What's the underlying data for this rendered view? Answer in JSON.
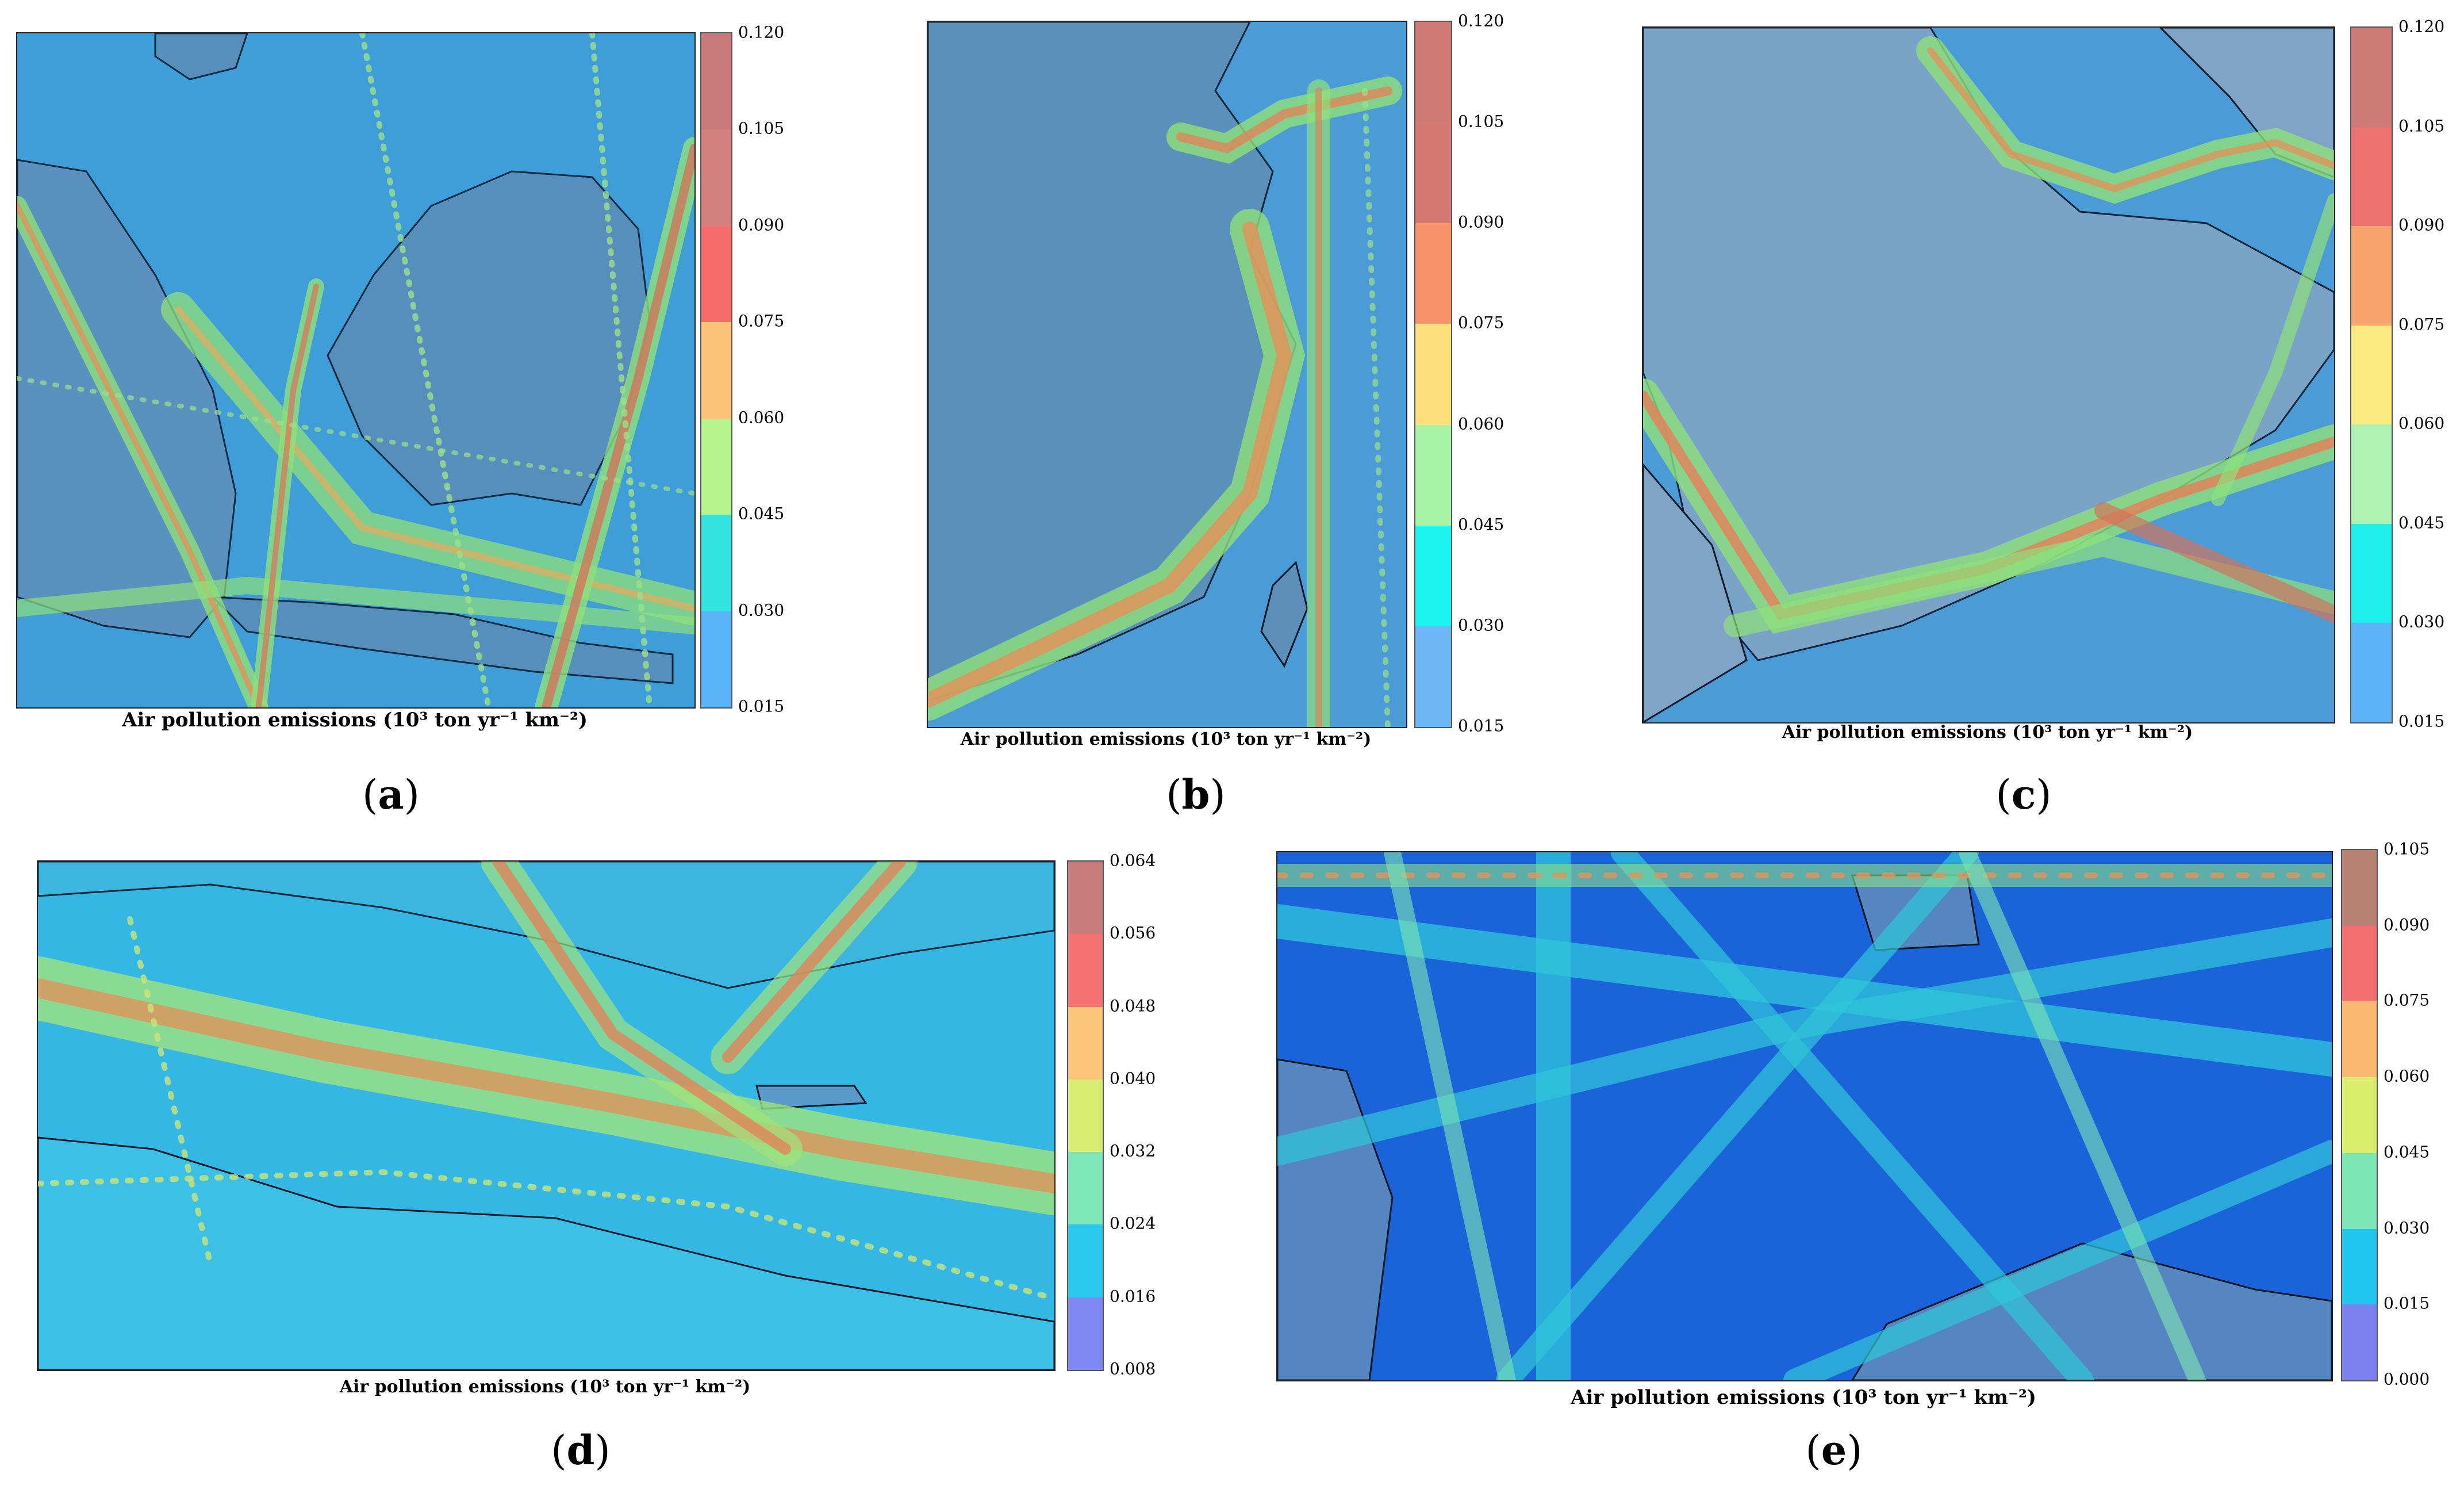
{
  "axis_label": "Air pollution emissions (10³ ton yr⁻¹ km⁻²)",
  "panels": [
    {
      "label": "a",
      "colorbar_ticks": [
        "0.015",
        "0.030",
        "0.045",
        "0.060",
        "0.075",
        "0.090",
        "0.105",
        "0.120"
      ],
      "colorbar_colors": [
        "#5ab4f8",
        "#33e3df",
        "#b6f58e",
        "#fcc37a",
        "#f76b6b",
        "#d38080",
        "#c97b7b"
      ]
    },
    {
      "label": "b",
      "colorbar_ticks": [
        "0.015",
        "0.030",
        "0.045",
        "0.060",
        "0.075",
        "0.090",
        "0.105",
        "0.120"
      ],
      "colorbar_colors": [
        "#6db7f6",
        "#1cf2ee",
        "#a8f4a6",
        "#fbe07c",
        "#f8926a",
        "#d57a72",
        "#cf7a74"
      ]
    },
    {
      "label": "c",
      "colorbar_ticks": [
        "0.015",
        "0.030",
        "0.045",
        "0.060",
        "0.075",
        "0.090",
        "0.105",
        "0.120"
      ],
      "colorbar_colors": [
        "#5eb3f6",
        "#1ff0ec",
        "#aff3b4",
        "#fbea7d",
        "#f9a36d",
        "#ec7370",
        "#cf7b78"
      ]
    },
    {
      "label": "d",
      "colorbar_ticks": [
        "0.008",
        "0.016",
        "0.024",
        "0.032",
        "0.040",
        "0.048",
        "0.056",
        "0.064"
      ],
      "colorbar_colors": [
        "#7d88f3",
        "#2bc8ee",
        "#7fe6b9",
        "#d9ed73",
        "#fbc67a",
        "#f57272",
        "#c97e7e"
      ]
    },
    {
      "label": "e",
      "colorbar_ticks": [
        "0.000",
        "0.015",
        "0.030",
        "0.045",
        "0.060",
        "0.075",
        "0.090",
        "0.105"
      ],
      "colorbar_colors": [
        "#7d80f1",
        "#1fc6ee",
        "#7ee6b2",
        "#d8ee6c",
        "#fbb971",
        "#f47070",
        "#b88072"
      ]
    }
  ]
}
